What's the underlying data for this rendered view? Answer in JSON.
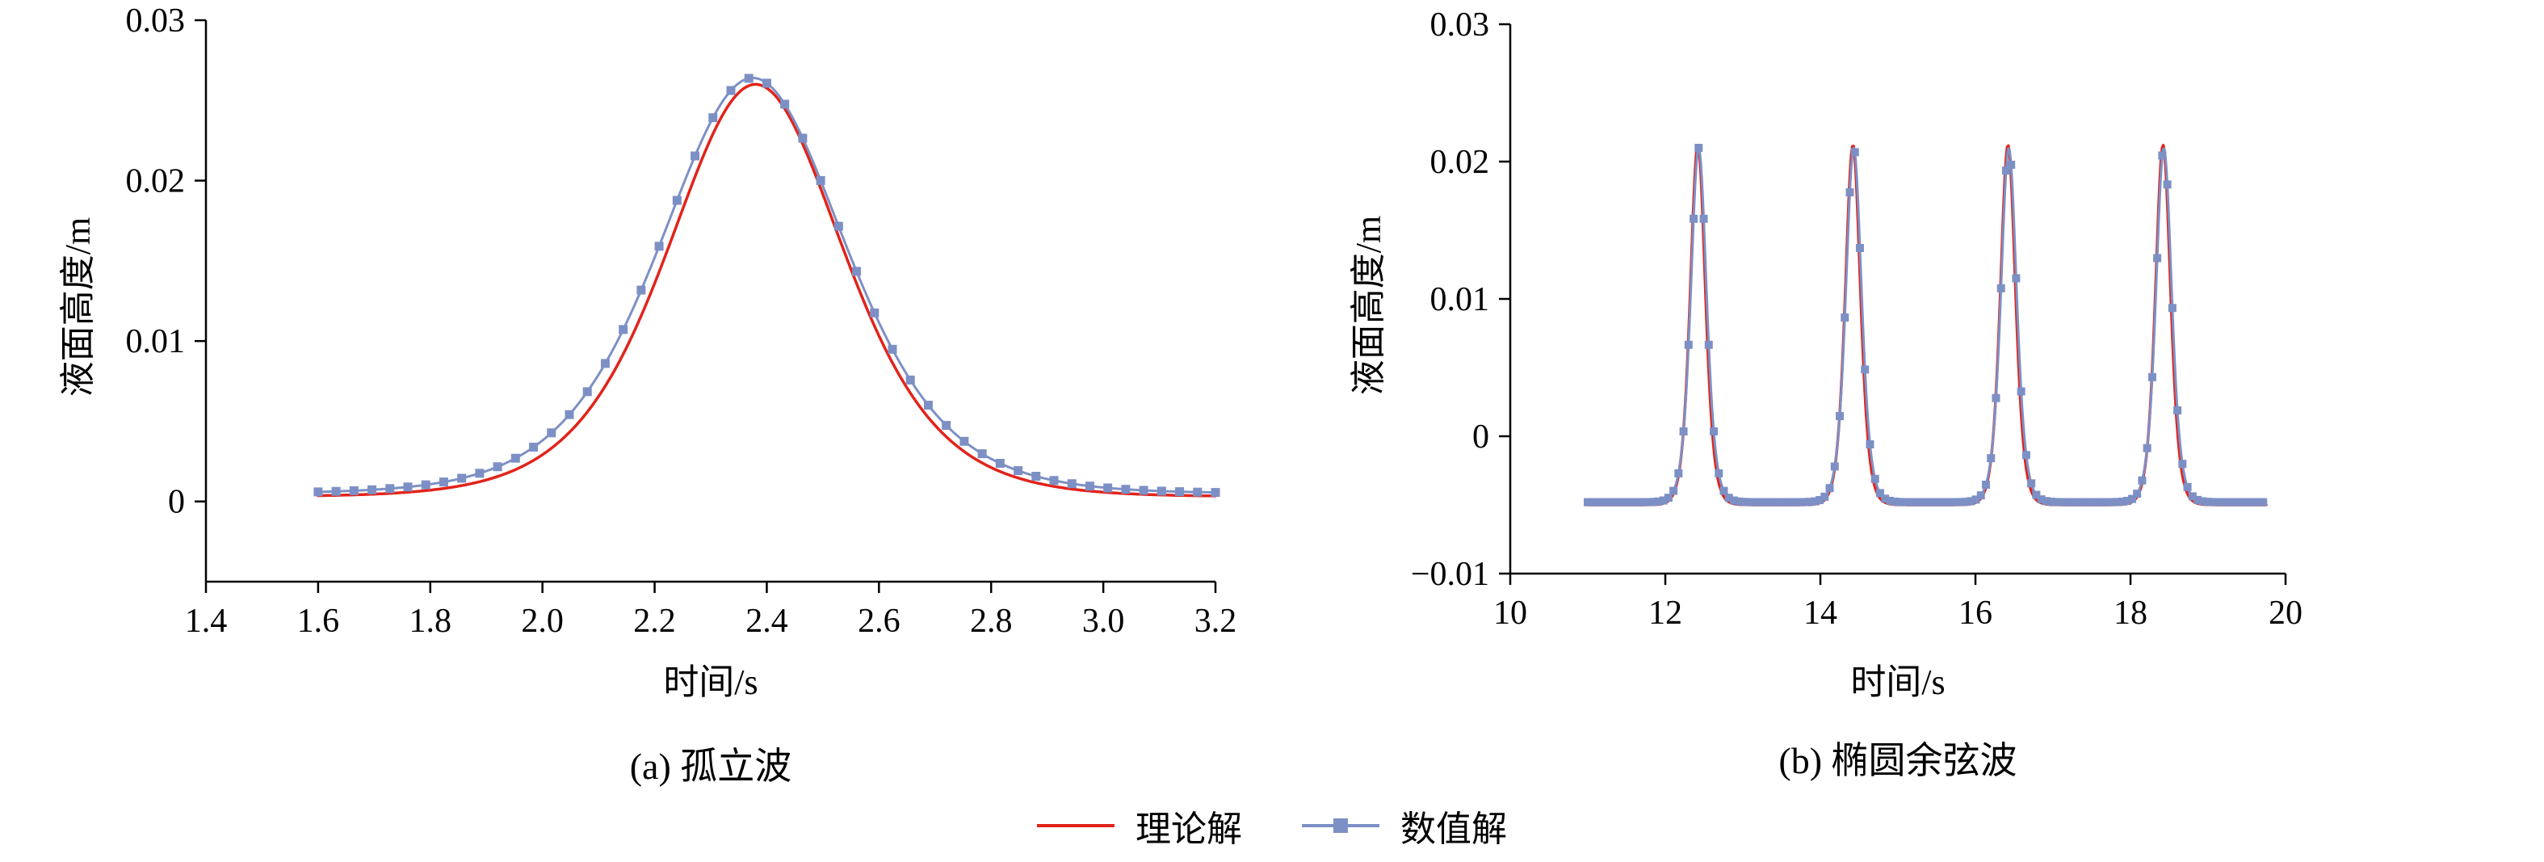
{
  "axis": {
    "color": "#000000",
    "tick_len": 14,
    "line_width": 2.5
  },
  "legend": {
    "items": [
      {
        "label": "理论解",
        "color": "#e2231a",
        "marker": false
      },
      {
        "label": "数值解",
        "color": "#7d90c5",
        "marker": true
      }
    ],
    "position": "bottom-center"
  },
  "chart_data": [
    {
      "id": "solitary-wave",
      "type": "line",
      "title": "(a) 孤立波",
      "xlabel": "时间/s",
      "ylabel": "液面高度/m",
      "xlim": [
        1.4,
        3.2
      ],
      "ylim": [
        -0.005,
        0.03
      ],
      "xtick_values": [
        1.4,
        1.6,
        1.8,
        2.0,
        2.2,
        2.4,
        2.6,
        2.8,
        3.0,
        3.2
      ],
      "xtick_labels": [
        "1.4",
        "1.6",
        "1.8",
        "2.0",
        "2.2",
        "2.4",
        "2.6",
        "2.8",
        "3.0",
        "3.2"
      ],
      "ytick_values": [
        0,
        0.01,
        0.02,
        0.03
      ],
      "ytick_labels": [
        "0",
        "0.01",
        "0.02",
        "0.03"
      ],
      "grid": false,
      "series": [
        {
          "name": "理论解",
          "role": "theoretical",
          "color": "#e2231a",
          "line_width": 3.5,
          "markers": false,
          "x_start": 1.6,
          "x_end": 3.2,
          "wave": {
            "kind": "sech2",
            "baseline": 0.0003,
            "amplitude": 0.0257,
            "centers": [
              2.38
            ],
            "width": 0.21
          },
          "peak": {
            "x": 2.38,
            "y": 0.026
          }
        },
        {
          "name": "数值解",
          "role": "numerical",
          "color": "#7d90c5",
          "line_width": 3,
          "markers": true,
          "marker_size": 11,
          "marker_step": 0.032,
          "x_start": 1.6,
          "x_end": 3.2,
          "wave": {
            "kind": "sech2",
            "baseline": 0.0005,
            "amplitude": 0.0259,
            "centers": [
              2.375
            ],
            "width": 0.222
          },
          "peak": {
            "x": 2.375,
            "y": 0.0264
          }
        }
      ]
    },
    {
      "id": "cnoidal-wave",
      "type": "line",
      "title": "(b) 椭圆余弦波",
      "xlabel": "时间/s",
      "ylabel": "液面高度/m",
      "xlim": [
        10,
        20
      ],
      "ylim": [
        -0.01,
        0.03
      ],
      "xtick_values": [
        10,
        12,
        14,
        16,
        18,
        20
      ],
      "xtick_labels": [
        "10",
        "12",
        "14",
        "16",
        "18",
        "20"
      ],
      "ytick_values": [
        -0.01,
        0,
        0.01,
        0.02,
        0.03
      ],
      "ytick_labels": [
        "−0.01",
        "0",
        "0.01",
        "0.02",
        "0.03"
      ],
      "grid": false,
      "series": [
        {
          "name": "理论解",
          "role": "theoretical",
          "color": "#e2231a",
          "line_width": 3.5,
          "markers": false,
          "x_start": 11.0,
          "x_end": 19.75,
          "wave": {
            "kind": "sech2",
            "baseline": -0.005,
            "amplitude": 0.0262,
            "centers": [
              12.42,
              14.42,
              16.42,
              18.42
            ],
            "width": 0.13
          },
          "period": 2.0,
          "crest": 0.021,
          "trough": -0.005
        },
        {
          "name": "数值解",
          "role": "numerical",
          "color": "#7d90c5",
          "line_width": 3,
          "markers": true,
          "marker_size": 10,
          "marker_step": 0.065,
          "x_start": 11.0,
          "x_end": 19.75,
          "wave": {
            "kind": "sech2",
            "baseline": -0.0048,
            "amplitude": 0.0258,
            "centers": [
              12.43,
              14.43,
              16.43,
              18.43
            ],
            "width": 0.135
          },
          "period": 2.0,
          "crest": 0.021,
          "trough": -0.0048
        }
      ]
    }
  ]
}
